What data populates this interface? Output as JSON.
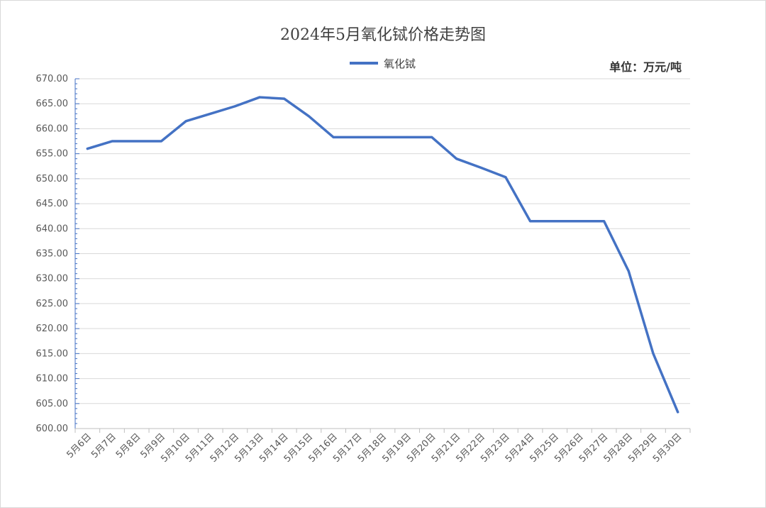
{
  "chart_data": {
    "type": "line",
    "title": "2024年5月氧化铽价格走势图",
    "unit_label": "单位：万元/吨",
    "legend_position": "top-center",
    "grid": true,
    "ylim": [
      600,
      670
    ],
    "y_ticks": [
      "600.00",
      "605.00",
      "610.00",
      "615.00",
      "620.00",
      "625.00",
      "630.00",
      "635.00",
      "640.00",
      "645.00",
      "650.00",
      "655.00",
      "660.00",
      "665.00",
      "670.00"
    ],
    "categories": [
      "5月6日",
      "5月7日",
      "5月8日",
      "5月9日",
      "5月10日",
      "5月11日",
      "5月12日",
      "5月13日",
      "5月14日",
      "5月15日",
      "5月16日",
      "5月17日",
      "5月18日",
      "5月19日",
      "5月20日",
      "5月21日",
      "5月22日",
      "5月23日",
      "5月24日",
      "5月25日",
      "5月26日",
      "5月27日",
      "5月28日",
      "5月29日",
      "5月30日"
    ],
    "series": [
      {
        "name": "氧化铽",
        "color": "#4472c4",
        "values": [
          656,
          657.5,
          657.5,
          657.5,
          661.5,
          663,
          664.5,
          666.3,
          666,
          662.5,
          658.3,
          658.3,
          658.3,
          658.3,
          658.3,
          654,
          652.2,
          650.3,
          641.5,
          641.5,
          641.5,
          641.5,
          631.5,
          615,
          603.3
        ]
      }
    ]
  }
}
